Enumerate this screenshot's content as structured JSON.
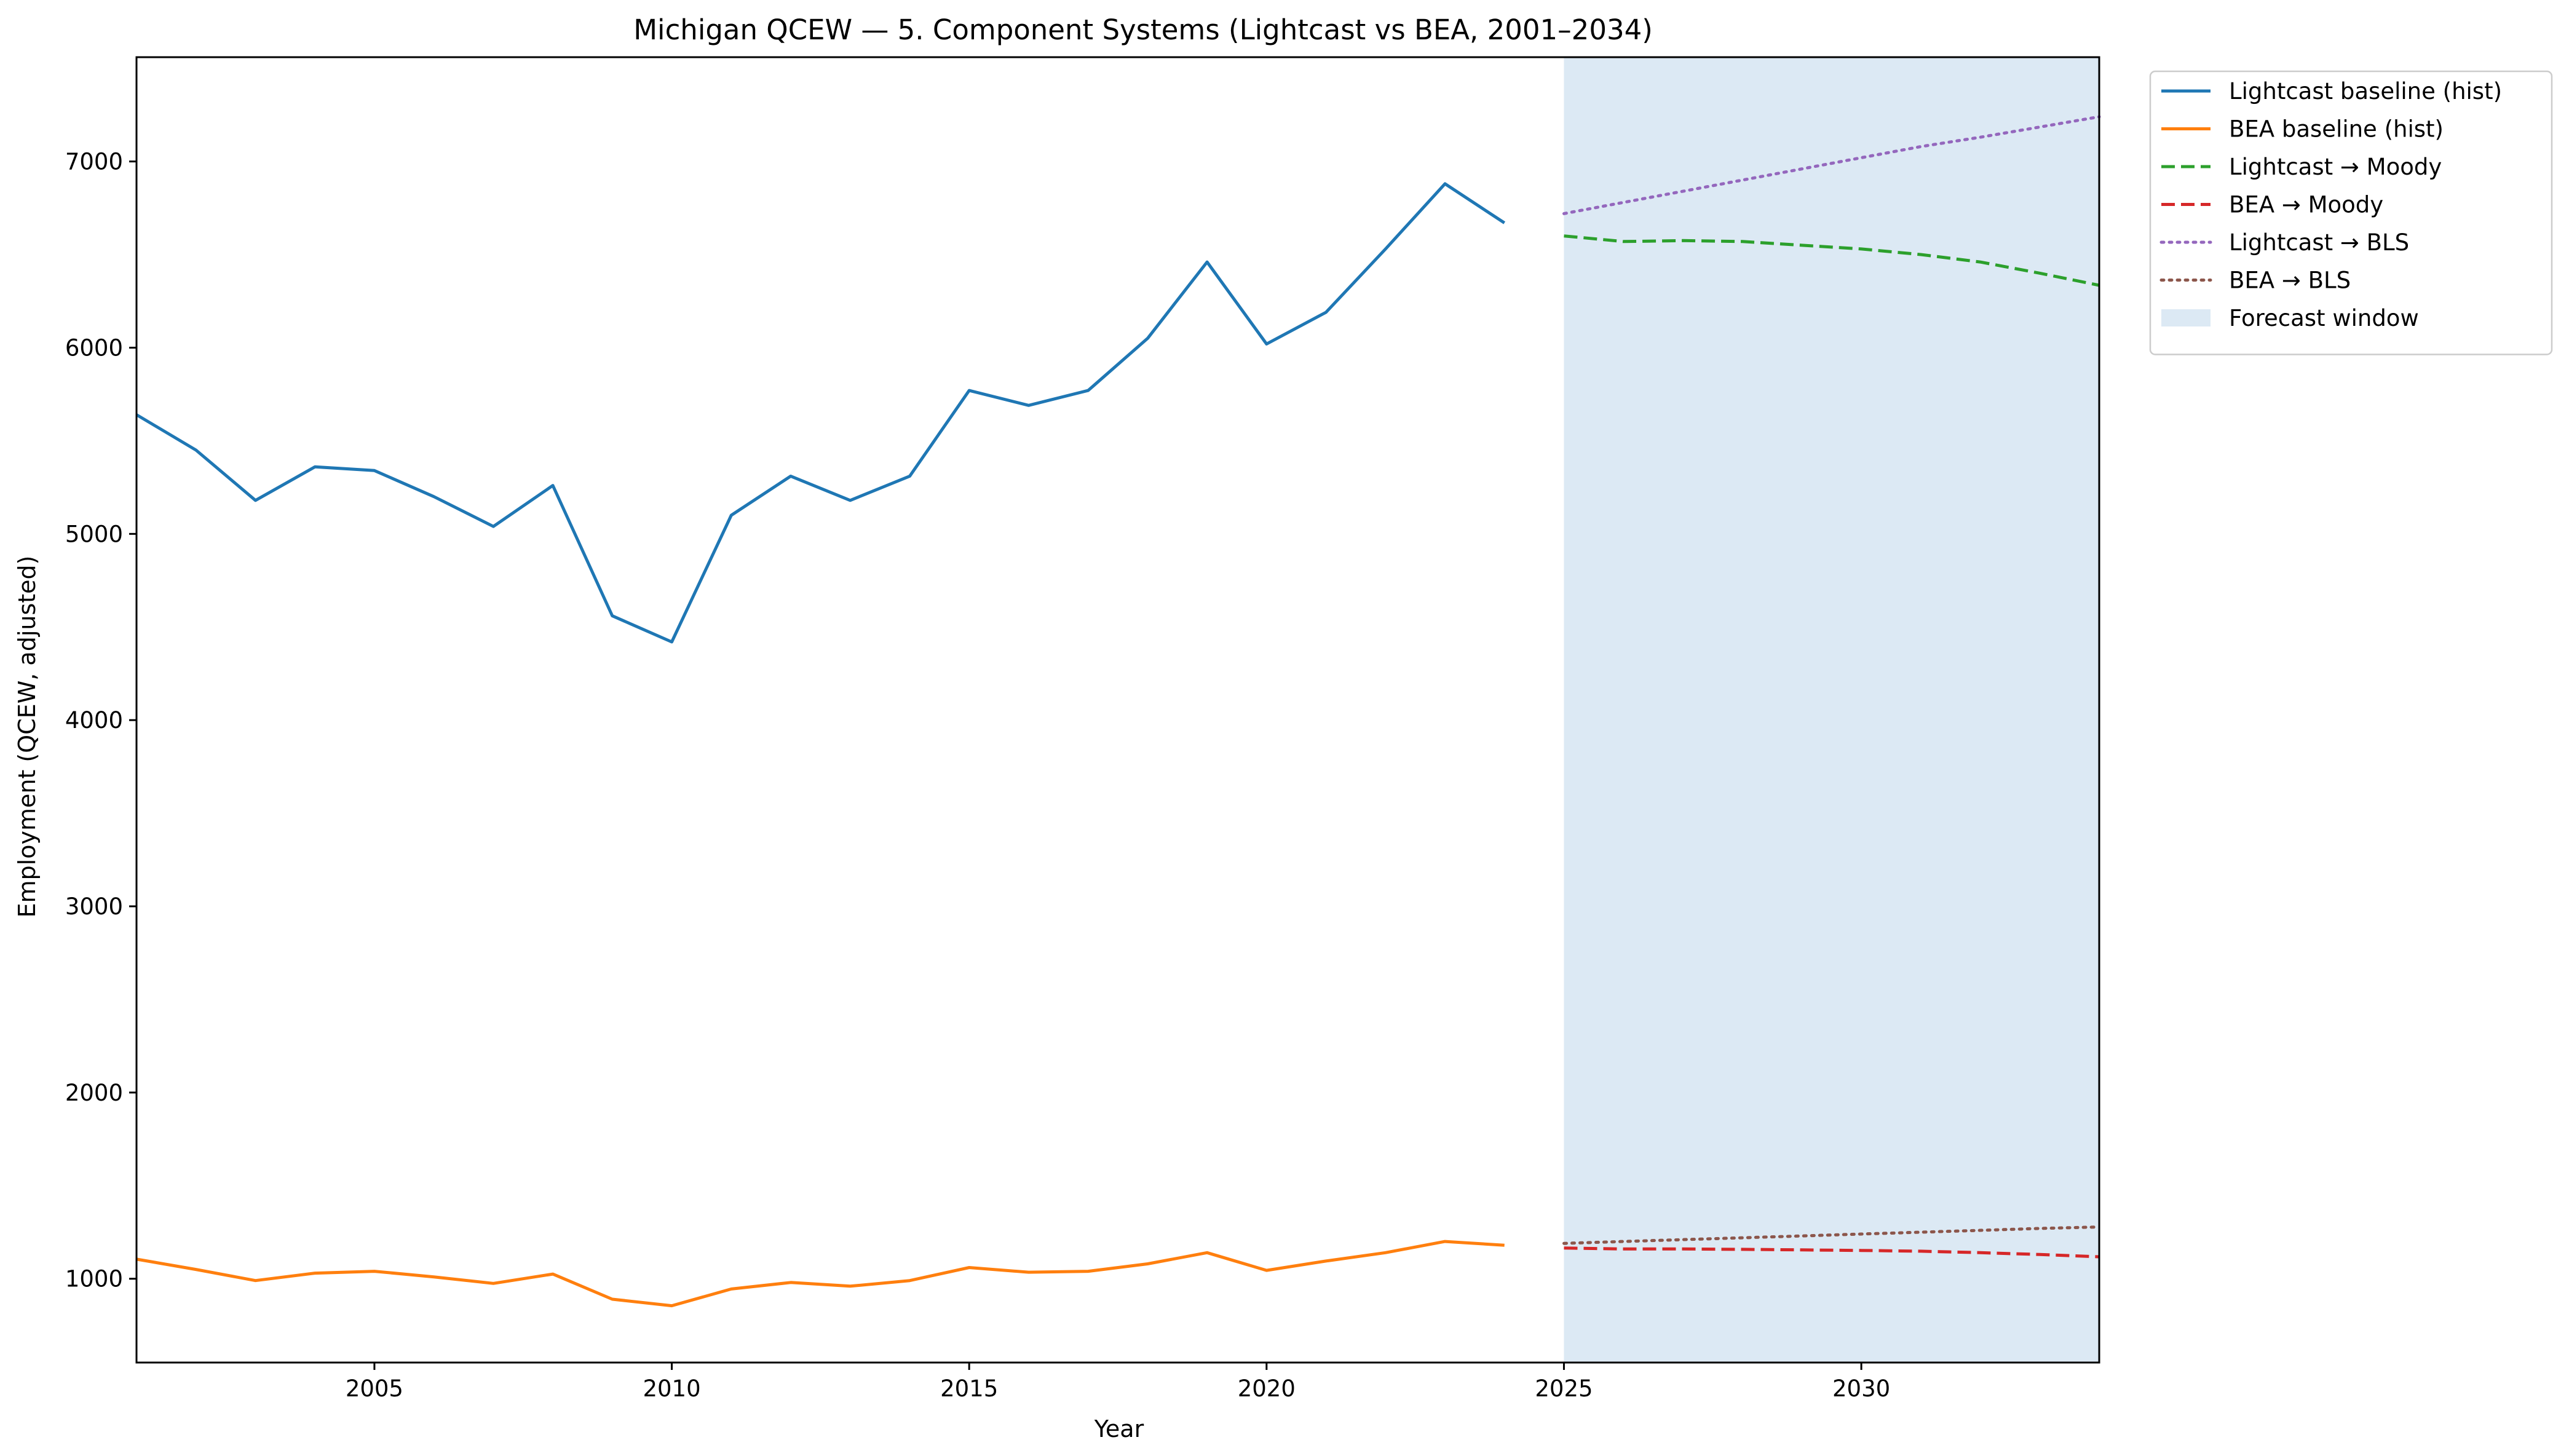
{
  "chart_data": {
    "type": "line",
    "title": "Michigan QCEW — 5. Component Systems (Lightcast vs BEA, 2001–2034)",
    "xlabel": "Year",
    "ylabel": "Employment (QCEW, adjusted)",
    "xlim": [
      2001,
      2034
    ],
    "ylim": [
      550,
      7560
    ],
    "xticks": [
      2005,
      2010,
      2015,
      2020,
      2025,
      2030
    ],
    "yticks": [
      1000,
      2000,
      3000,
      4000,
      5000,
      6000,
      7000
    ],
    "grid": false,
    "legend_position": "outside-top-right",
    "forecast_window": {
      "label": "Forecast window",
      "x": [
        2025,
        2034
      ],
      "color": "#dce9f4"
    },
    "series": [
      {
        "name": "Lightcast baseline (hist)",
        "color": "#1f77b4",
        "style": "solid",
        "x": [
          2001,
          2002,
          2003,
          2004,
          2005,
          2006,
          2007,
          2008,
          2009,
          2010,
          2011,
          2012,
          2013,
          2014,
          2015,
          2016,
          2017,
          2018,
          2019,
          2020,
          2021,
          2022,
          2023,
          2024
        ],
        "y": [
          5640,
          5450,
          5180,
          5360,
          5340,
          5200,
          5040,
          5260,
          4560,
          4420,
          5100,
          5310,
          5180,
          5310,
          5770,
          5690,
          5770,
          6050,
          6460,
          6020,
          6190,
          6530,
          6880,
          6670
        ]
      },
      {
        "name": "BEA baseline (hist)",
        "color": "#ff7f0e",
        "style": "solid",
        "x": [
          2001,
          2002,
          2003,
          2004,
          2005,
          2006,
          2007,
          2008,
          2009,
          2010,
          2011,
          2012,
          2013,
          2014,
          2015,
          2016,
          2017,
          2018,
          2019,
          2020,
          2021,
          2022,
          2023,
          2024
        ],
        "y": [
          1105,
          1050,
          990,
          1030,
          1040,
          1010,
          975,
          1025,
          890,
          855,
          945,
          980,
          960,
          990,
          1060,
          1035,
          1040,
          1080,
          1140,
          1045,
          1095,
          1140,
          1200,
          1180
        ]
      },
      {
        "name": "Lightcast → Moody",
        "color": "#2ca02c",
        "style": "dashed",
        "x": [
          2025,
          2026,
          2027,
          2028,
          2029,
          2030,
          2031,
          2032,
          2033,
          2034
        ],
        "y": [
          6600,
          6570,
          6575,
          6570,
          6550,
          6530,
          6500,
          6460,
          6400,
          6335
        ]
      },
      {
        "name": "BEA → Moody",
        "color": "#d62728",
        "style": "dashed",
        "x": [
          2025,
          2026,
          2027,
          2028,
          2029,
          2030,
          2031,
          2032,
          2033,
          2034
        ],
        "y": [
          1165,
          1160,
          1160,
          1158,
          1155,
          1152,
          1148,
          1140,
          1130,
          1118
        ]
      },
      {
        "name": "Lightcast → BLS",
        "color": "#9467bd",
        "style": "dotted",
        "x": [
          2025,
          2026,
          2027,
          2028,
          2029,
          2030,
          2031,
          2032,
          2033,
          2034
        ],
        "y": [
          6720,
          6780,
          6840,
          6900,
          6960,
          7020,
          7080,
          7130,
          7185,
          7240
        ]
      },
      {
        "name": "BEA → BLS",
        "color": "#8c564b",
        "style": "dotted",
        "x": [
          2025,
          2026,
          2027,
          2028,
          2029,
          2030,
          2031,
          2032,
          2033,
          2034
        ],
        "y": [
          1190,
          1200,
          1210,
          1220,
          1230,
          1240,
          1250,
          1260,
          1270,
          1278
        ]
      }
    ]
  }
}
